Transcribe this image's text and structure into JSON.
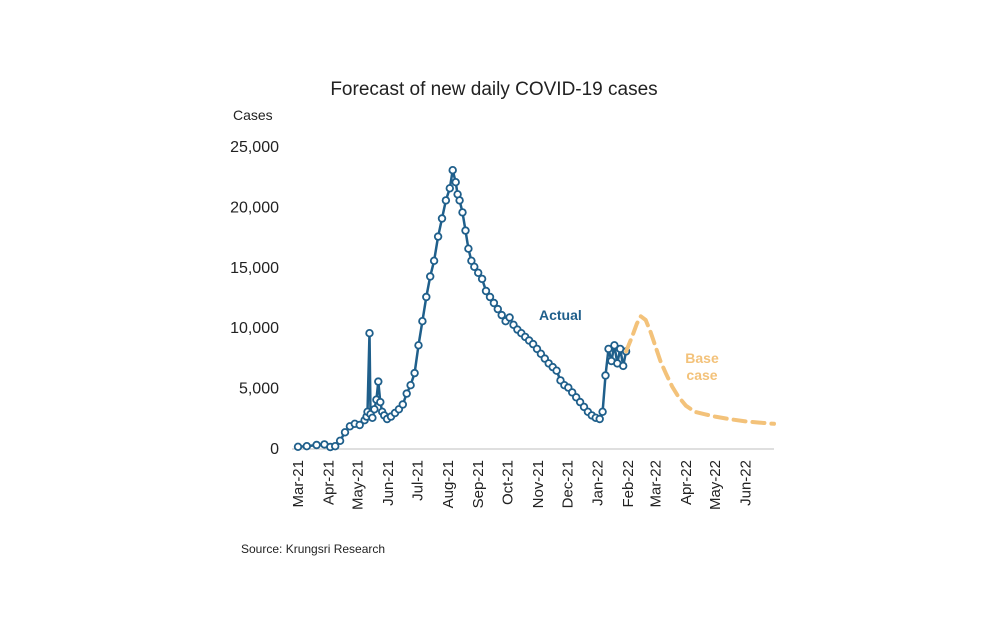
{
  "chart_data": {
    "type": "line",
    "title": "Forecast of new daily COVID-19 cases",
    "ylabel": "Cases",
    "xlabel": "",
    "ylim": [
      0,
      25000
    ],
    "yticks": [
      0,
      5000,
      10000,
      15000,
      20000,
      25000
    ],
    "ytick_labels": [
      "0",
      "5,000",
      "10,000",
      "15,000",
      "20,000",
      "25,000"
    ],
    "xticks": [
      "Mar-21",
      "Apr-21",
      "May-21",
      "Jun-21",
      "Jul-21",
      "Aug-21",
      "Sep-21",
      "Oct-21",
      "Nov-21",
      "Dec-21",
      "Jan-22",
      "Feb-22",
      "Mar-22",
      "Apr-22",
      "May-22",
      "Jun-22"
    ],
    "x_range": [
      "2021-03-01",
      "2022-06-30"
    ],
    "grid": false,
    "legend": "none",
    "colors": {
      "actual": "#1f5f8b",
      "base_case": "#f3c27a"
    },
    "annotations": [
      {
        "text": "Actual",
        "series": "Actual"
      },
      {
        "text": "Base case",
        "series": "Base case",
        "lines": [
          "Base",
          "case"
        ]
      }
    ],
    "source": "Source: Krungsri Research",
    "series": [
      {
        "name": "Actual",
        "style": "solid-markers",
        "x": [
          "2021-03-01",
          "2021-03-10",
          "2021-03-20",
          "2021-03-28",
          "2021-04-03",
          "2021-04-08",
          "2021-04-13",
          "2021-04-18",
          "2021-04-23",
          "2021-04-28",
          "2021-05-03",
          "2021-05-08",
          "2021-05-10",
          "2021-05-11",
          "2021-05-13",
          "2021-05-14",
          "2021-05-16",
          "2021-05-18",
          "2021-05-20",
          "2021-05-22",
          "2021-05-24",
          "2021-05-26",
          "2021-05-28",
          "2021-05-31",
          "2021-06-04",
          "2021-06-08",
          "2021-06-12",
          "2021-06-16",
          "2021-06-20",
          "2021-06-24",
          "2021-06-28",
          "2021-07-02",
          "2021-07-06",
          "2021-07-10",
          "2021-07-14",
          "2021-07-18",
          "2021-07-22",
          "2021-07-26",
          "2021-07-30",
          "2021-08-03",
          "2021-08-06",
          "2021-08-09",
          "2021-08-11",
          "2021-08-13",
          "2021-08-16",
          "2021-08-19",
          "2021-08-22",
          "2021-08-25",
          "2021-08-28",
          "2021-09-01",
          "2021-09-05",
          "2021-09-09",
          "2021-09-13",
          "2021-09-17",
          "2021-09-21",
          "2021-09-25",
          "2021-09-29",
          "2021-10-03",
          "2021-10-07",
          "2021-10-11",
          "2021-10-15",
          "2021-10-19",
          "2021-10-23",
          "2021-10-27",
          "2021-10-31",
          "2021-11-04",
          "2021-11-08",
          "2021-11-12",
          "2021-11-16",
          "2021-11-20",
          "2021-11-24",
          "2021-11-28",
          "2021-12-02",
          "2021-12-06",
          "2021-12-10",
          "2021-12-14",
          "2021-12-18",
          "2021-12-22",
          "2021-12-26",
          "2021-12-30",
          "2022-01-03",
          "2022-01-06",
          "2022-01-09",
          "2022-01-12",
          "2022-01-15",
          "2022-01-18",
          "2022-01-21",
          "2022-01-24",
          "2022-01-27",
          "2022-01-30"
        ],
        "y": [
          100,
          150,
          250,
          300,
          80,
          150,
          600,
          1300,
          1800,
          2000,
          1900,
          2300,
          2600,
          3000,
          9500,
          2800,
          2500,
          3200,
          4000,
          5500,
          3800,
          3000,
          2700,
          2400,
          2600,
          2900,
          3200,
          3600,
          4500,
          5200,
          6200,
          8500,
          10500,
          12500,
          14200,
          15500,
          17500,
          19000,
          20500,
          21500,
          23000,
          22000,
          21000,
          20500,
          19500,
          18000,
          16500,
          15500,
          15000,
          14500,
          14000,
          13000,
          12500,
          12000,
          11500,
          11000,
          10500,
          10800,
          10200,
          9800,
          9500,
          9200,
          8900,
          8600,
          8200,
          7800,
          7400,
          7000,
          6700,
          6400,
          5600,
          5200,
          5000,
          4600,
          4200,
          3800,
          3400,
          3000,
          2700,
          2500,
          2400,
          3000,
          6000,
          8200,
          7200,
          8500,
          7000,
          8200,
          6800,
          8000
        ]
      },
      {
        "name": "Base case",
        "style": "dashed",
        "x": [
          "2022-01-30",
          "2022-02-05",
          "2022-02-10",
          "2022-02-14",
          "2022-02-19",
          "2022-02-24",
          "2022-03-01",
          "2022-03-06",
          "2022-03-12",
          "2022-03-18",
          "2022-03-24",
          "2022-04-01",
          "2022-04-10",
          "2022-04-20",
          "2022-05-01",
          "2022-05-15",
          "2022-06-01",
          "2022-06-15",
          "2022-06-30"
        ],
        "y": [
          8000,
          9200,
          10300,
          10900,
          10600,
          9600,
          8400,
          7200,
          6100,
          5100,
          4300,
          3500,
          3000,
          2800,
          2600,
          2400,
          2200,
          2100,
          2000
        ]
      }
    ]
  }
}
